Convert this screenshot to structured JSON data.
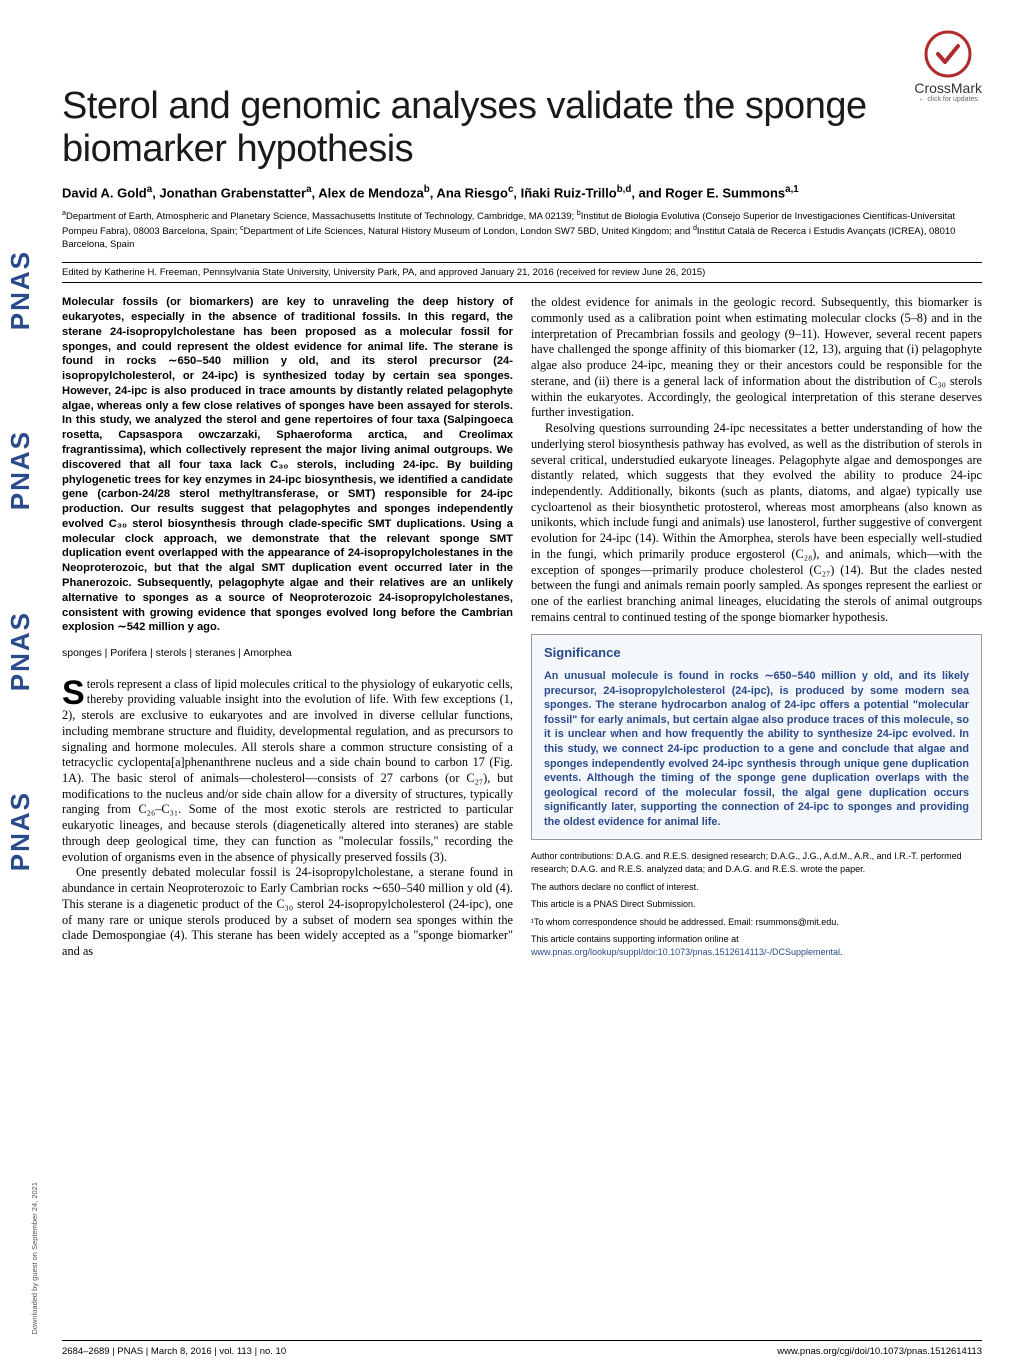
{
  "colors": {
    "accent": "#2b4a8b",
    "text": "#1a1a1a",
    "sig_bg": "#f4f7fb",
    "background": "#ffffff"
  },
  "crossmark": {
    "label": "CrossMark",
    "sub": "← click for updates"
  },
  "sidebar": {
    "repeat_text": "PNAS"
  },
  "title": "Sterol and genomic analyses validate the sponge biomarker hypothesis",
  "authors_html": "David A. Gold<sup>a</sup>, Jonathan Grabenstatter<sup>a</sup>, Alex de Mendoza<sup>b</sup>, Ana Riesgo<sup>c</sup>, Iñaki Ruiz-Trillo<sup>b,d</sup>, and Roger E. Summons<sup>a,1</sup>",
  "affiliations_html": "<sup>a</sup>Department of Earth, Atmospheric and Planetary Science, Massachusetts Institute of Technology, Cambridge, MA 02139; <sup>b</sup>Institut de Biologia Evolutiva (Consejo Superior de Investigaciones Científicas-Universitat Pompeu Fabra), 08003 Barcelona, Spain; <sup>c</sup>Department of Life Sciences, Natural History Museum of London, London SW7 5BD, United Kingdom; and <sup>d</sup>Institut Català de Recerca i Estudis Avançats (ICREA), 08010 Barcelona, Spain",
  "edited": "Edited by Katherine H. Freeman, Pennsylvania State University, University Park, PA, and approved January 21, 2016 (received for review June 26, 2015)",
  "abstract": "Molecular fossils (or biomarkers) are key to unraveling the deep history of eukaryotes, especially in the absence of traditional fossils. In this regard, the sterane 24-isopropylcholestane has been proposed as a molecular fossil for sponges, and could represent the oldest evidence for animal life. The sterane is found in rocks ∼650–540 million y old, and its sterol precursor (24-isopropylcholesterol, or 24-ipc) is synthesized today by certain sea sponges. However, 24-ipc is also produced in trace amounts by distantly related pelagophyte algae, whereas only a few close relatives of sponges have been assayed for sterols. In this study, we analyzed the sterol and gene repertoires of four taxa (Salpingoeca rosetta, Capsaspora owczarzaki, Sphaeroforma arctica, and Creolimax fragrantissima), which collectively represent the major living animal outgroups. We discovered that all four taxa lack C₃₀ sterols, including 24-ipc. By building phylogenetic trees for key enzymes in 24-ipc biosynthesis, we identified a candidate gene (carbon-24/28 sterol methyltransferase, or SMT) responsible for 24-ipc production. Our results suggest that pelagophytes and sponges independently evolved C₃₀ sterol biosynthesis through clade-specific SMT duplications. Using a molecular clock approach, we demonstrate that the relevant sponge SMT duplication event overlapped with the appearance of 24-isopropylcholestanes in the Neoproterozoic, but that the algal SMT duplication event occurred later in the Phanerozoic. Subsequently, pelagophyte algae and their relatives are an unlikely alternative to sponges as a source of Neoproterozoic 24-isopropylcholestanes, consistent with growing evidence that sponges evolved long before the Cambrian explosion ∼542 million y ago.",
  "keywords": "sponges | Porifera | sterols | steranes | Amorphea",
  "body_col1_p1": "terols represent a class of lipid molecules critical to the physiology of eukaryotic cells, thereby providing valuable insight into the evolution of life. With few exceptions (1, 2), sterols are exclusive to eukaryotes and are involved in diverse cellular functions, including membrane structure and fluidity, developmental regulation, and as precursors to signaling and hormone molecules. All sterols share a common structure consisting of a tetracyclic cyclopenta[a]phenanthrene nucleus and a side chain bound to carbon 17 (Fig. 1A). The basic sterol of animals—cholesterol—consists of 27 carbons (or C₂₇), but modifications to the nucleus and/or side chain allow for a diversity of structures, typically ranging from C₂₆–C₃₁. Some of the most exotic sterols are restricted to particular eukaryotic lineages, and because sterols (diagenetically altered into steranes) are stable through deep geological time, they can function as \"molecular fossils,\" recording the evolution of organisms even in the absence of physically preserved fossils (3).",
  "body_col1_p2": "One presently debated molecular fossil is 24-isopropylcholestane, a sterane found in abundance in certain Neoproterozoic to Early Cambrian rocks ∼650–540 million y old (4). This sterane is a diagenetic product of the C₃₀ sterol 24-isopropylcholesterol (24-ipc), one of many rare or unique sterols produced by a subset of modern sea sponges within the clade Demospongiae (4). This sterane has been widely accepted as a \"sponge biomarker\" and as",
  "body_col2_p1": "the oldest evidence for animals in the geologic record. Subsequently, this biomarker is commonly used as a calibration point when estimating molecular clocks (5–8) and in the interpretation of Precambrian fossils and geology (9–11). However, several recent papers have challenged the sponge affinity of this biomarker (12, 13), arguing that (i) pelagophyte algae also produce 24-ipc, meaning they or their ancestors could be responsible for the sterane, and (ii) there is a general lack of information about the distribution of C₃₀ sterols within the eukaryotes. Accordingly, the geological interpretation of this sterane deserves further investigation.",
  "body_col2_p2": "Resolving questions surrounding 24-ipc necessitates a better understanding of how the underlying sterol biosynthesis pathway has evolved, as well as the distribution of sterols in several critical, understudied eukaryote lineages. Pelagophyte algae and demosponges are distantly related, which suggests that they evolved the ability to produce 24-ipc independently. Additionally, bikonts (such as plants, diatoms, and algae) typically use cycloartenol as their biosynthetic protosterol, whereas most amorpheans (also known as unikonts, which include fungi and animals) use lanosterol, further suggestive of convergent evolution for 24-ipc (14). Within the Amorphea, sterols have been especially well-studied in the fungi, which primarily produce ergosterol (C₂₈), and animals, which—with the exception of sponges—primarily produce cholesterol (C₂₇) (14). But the clades nested between the fungi and animals remain poorly sampled. As sponges represent the earliest or one of the earliest branching animal lineages, elucidating the sterols of animal outgroups remains central to continued testing of the sponge biomarker hypothesis.",
  "significance": {
    "title": "Significance",
    "body": "An unusual molecule is found in rocks ∼650–540 million y old, and its likely precursor, 24-isopropylcholesterol (24-ipc), is produced by some modern sea sponges. The sterane hydrocarbon analog of 24-ipc offers a potential \"molecular fossil\" for early animals, but certain algae also produce traces of this molecule, so it is unclear when and how frequently the ability to synthesize 24-ipc evolved. In this study, we connect 24-ipc production to a gene and conclude that algae and sponges independently evolved 24-ipc synthesis through unique gene duplication events. Although the timing of the sponge gene duplication overlaps with the geological record of the molecular fossil, the algal gene duplication occurs significantly later, supporting the connection of 24-ipc to sponges and providing the oldest evidence for animal life."
  },
  "footnotes": {
    "contrib": "Author contributions: D.A.G. and R.E.S. designed research; D.A.G., J.G., A.d.M., A.R., and I.R.-T. performed research; D.A.G. and R.E.S. analyzed data; and D.A.G. and R.E.S. wrote the paper.",
    "conflict": "The authors declare no conflict of interest.",
    "submission": "This article is a PNAS Direct Submission.",
    "correspond": "¹To whom correspondence should be addressed. Email: rsummons@mit.edu.",
    "suppl_pre": "This article contains supporting information online at ",
    "suppl_link": "www.pnas.org/lookup/suppl/doi:10.1073/pnas.1512614113/-/DCSupplemental",
    "suppl_post": "."
  },
  "footer": {
    "left": "2684–2689  |  PNAS  |  March 8, 2016  |  vol. 113  |  no. 10",
    "right": "www.pnas.org/cgi/doi/10.1073/pnas.1512614113"
  },
  "download_note": "Downloaded by guest on September 24, 2021"
}
